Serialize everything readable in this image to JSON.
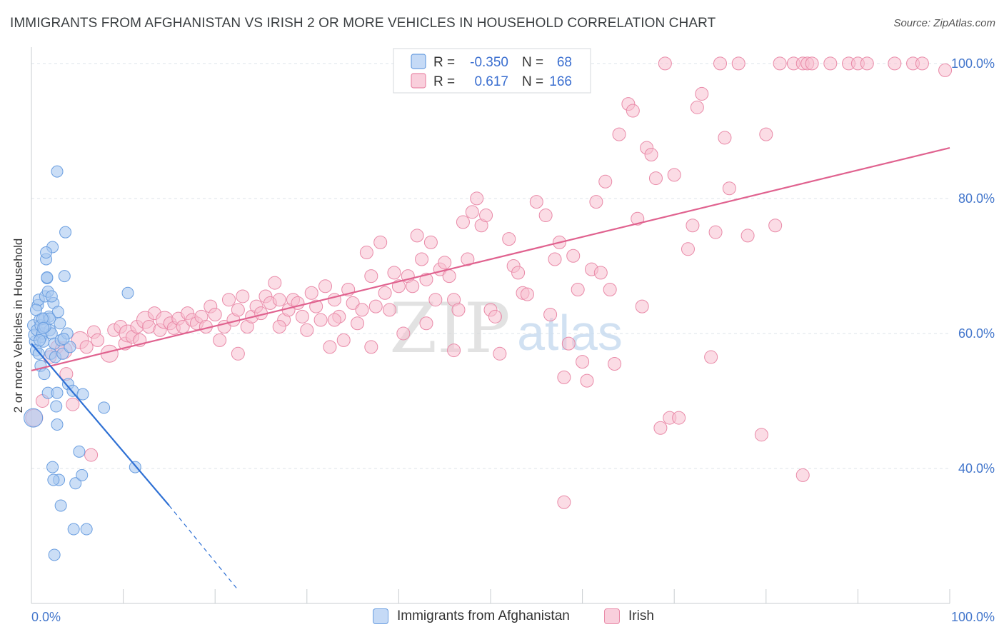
{
  "title": "IMMIGRANTS FROM AFGHANISTAN VS IRISH 2 OR MORE VEHICLES IN HOUSEHOLD CORRELATION CHART",
  "source": "Source: ZipAtlas.com",
  "watermark": {
    "zip": "ZIP",
    "atlas": "atlas"
  },
  "colors": {
    "blue_fill": "#a8c8f0",
    "blue_stroke": "#6a9ee0",
    "blue_line": "#2e70d4",
    "pink_fill": "#f7bfd0",
    "pink_stroke": "#e98aa8",
    "pink_line": "#e0628f",
    "tick_label": "#4477cc",
    "grid": "#dde3ea"
  },
  "legend": {
    "rows": [
      {
        "r_label": "R =",
        "r_value": "-0.350",
        "n_label": "N =",
        "n_value": "68"
      },
      {
        "r_label": "R =",
        "r_value": "0.617",
        "n_label": "N =",
        "n_value": "166"
      }
    ]
  },
  "chart_data": {
    "type": "scatter",
    "title": "IMMIGRANTS FROM AFGHANISTAN VS IRISH 2 OR MORE VEHICLES IN HOUSEHOLD CORRELATION CHART",
    "xlabel": "",
    "ylabel": "2 or more Vehicles in Household",
    "xlim": [
      0,
      100
    ],
    "ylim": [
      20,
      102
    ],
    "x_tick_labels": [
      "0.0%",
      "100.0%"
    ],
    "y_ticks": [
      40,
      60,
      80,
      100
    ],
    "y_tick_labels": [
      "40.0%",
      "60.0%",
      "80.0%",
      "100.0%"
    ],
    "grid": true,
    "legend_position": "top-center",
    "series": [
      {
        "name": "Immigrants from Afghanistan",
        "color": "blue",
        "R": -0.35,
        "N": 68,
        "points": [
          [
            0.2,
            61.2
          ],
          [
            0.4,
            58.8
          ],
          [
            0.5,
            57.5
          ],
          [
            0.3,
            59.8
          ],
          [
            0.6,
            60.5
          ],
          [
            0.2,
            47.5
          ],
          [
            0.7,
            64.2
          ],
          [
            0.8,
            65.0
          ],
          [
            0.9,
            62.0
          ],
          [
            1.0,
            61.2
          ],
          [
            1.1,
            59.5
          ],
          [
            1.2,
            60.0
          ],
          [
            1.3,
            58.8
          ],
          [
            1.4,
            62.2
          ],
          [
            1.5,
            65.5
          ],
          [
            1.6,
            71.0
          ],
          [
            1.7,
            68.2
          ],
          [
            1.8,
            66.2
          ],
          [
            1.9,
            62.5
          ],
          [
            2.0,
            60.5
          ],
          [
            1.0,
            55.2
          ],
          [
            1.4,
            54.0
          ],
          [
            2.1,
            57.0
          ],
          [
            2.2,
            60.0
          ],
          [
            2.3,
            72.8
          ],
          [
            2.4,
            64.5
          ],
          [
            2.5,
            58.5
          ],
          [
            2.6,
            56.5
          ],
          [
            2.8,
            84.0
          ],
          [
            2.9,
            63.2
          ],
          [
            3.1,
            61.5
          ],
          [
            3.2,
            59.0
          ],
          [
            3.4,
            57.0
          ],
          [
            3.6,
            68.5
          ],
          [
            3.7,
            75.0
          ],
          [
            3.9,
            60.0
          ],
          [
            4.0,
            52.5
          ],
          [
            4.2,
            58.0
          ],
          [
            4.5,
            51.5
          ],
          [
            4.8,
            37.8
          ],
          [
            5.2,
            42.5
          ],
          [
            5.5,
            39.0
          ],
          [
            5.6,
            51.0
          ],
          [
            6.0,
            31.0
          ],
          [
            4.6,
            31.0
          ],
          [
            2.5,
            27.2
          ],
          [
            3.2,
            34.5
          ],
          [
            3.0,
            38.3
          ],
          [
            2.4,
            38.3
          ],
          [
            2.3,
            40.2
          ],
          [
            2.8,
            46.5
          ],
          [
            2.7,
            49.2
          ],
          [
            1.8,
            51.2
          ],
          [
            2.8,
            51.2
          ],
          [
            7.9,
            49.0
          ],
          [
            10.5,
            66.0
          ],
          [
            11.3,
            40.2
          ],
          [
            1.5,
            61.0
          ],
          [
            0.9,
            59.0
          ],
          [
            1.7,
            68.3
          ],
          [
            2.0,
            62.2
          ],
          [
            1.2,
            62.2
          ],
          [
            1.6,
            72.0
          ],
          [
            2.2,
            65.5
          ],
          [
            1.3,
            60.8
          ],
          [
            0.8,
            57.0
          ],
          [
            3.5,
            59.2
          ],
          [
            0.5,
            63.5
          ]
        ]
      },
      {
        "name": "Irish",
        "color": "pink",
        "R": 0.617,
        "N": 166,
        "points": [
          [
            0.3,
            47.5
          ],
          [
            1.2,
            50.0
          ],
          [
            2.0,
            56.5
          ],
          [
            2.8,
            58.0
          ],
          [
            3.5,
            57.5
          ],
          [
            3.8,
            54.0
          ],
          [
            4.5,
            49.5
          ],
          [
            6.5,
            42.0
          ],
          [
            5.3,
            59.0
          ],
          [
            6.0,
            58.0
          ],
          [
            6.8,
            60.2
          ],
          [
            7.2,
            59.0
          ],
          [
            8.5,
            57.0
          ],
          [
            9.0,
            60.5
          ],
          [
            9.7,
            61.0
          ],
          [
            10.2,
            58.5
          ],
          [
            10.5,
            60.0
          ],
          [
            11.0,
            59.5
          ],
          [
            11.5,
            61.0
          ],
          [
            11.8,
            59.0
          ],
          [
            12.4,
            62.0
          ],
          [
            12.8,
            61.0
          ],
          [
            13.4,
            63.0
          ],
          [
            14.0,
            60.5
          ],
          [
            14.5,
            62.0
          ],
          [
            15.1,
            61.5
          ],
          [
            15.5,
            60.8
          ],
          [
            16.0,
            62.2
          ],
          [
            16.5,
            61.0
          ],
          [
            17.0,
            63.0
          ],
          [
            17.5,
            62.0
          ],
          [
            18.0,
            61.5
          ],
          [
            18.5,
            62.5
          ],
          [
            19.0,
            61.0
          ],
          [
            19.5,
            64.0
          ],
          [
            20.0,
            62.8
          ],
          [
            20.5,
            59.0
          ],
          [
            21.0,
            61.0
          ],
          [
            21.5,
            65.0
          ],
          [
            22.0,
            62.0
          ],
          [
            22.5,
            63.5
          ],
          [
            23.0,
            65.5
          ],
          [
            23.5,
            61.0
          ],
          [
            24.0,
            62.5
          ],
          [
            24.5,
            64.0
          ],
          [
            25.0,
            63.0
          ],
          [
            25.5,
            65.5
          ],
          [
            26.0,
            64.5
          ],
          [
            26.5,
            67.5
          ],
          [
            27.0,
            65.0
          ],
          [
            27.5,
            62.0
          ],
          [
            28.0,
            63.5
          ],
          [
            28.5,
            65.0
          ],
          [
            29.0,
            64.5
          ],
          [
            29.5,
            62.5
          ],
          [
            30.0,
            60.5
          ],
          [
            30.5,
            66.0
          ],
          [
            31.0,
            64.0
          ],
          [
            31.5,
            62.0
          ],
          [
            32.0,
            67.0
          ],
          [
            32.5,
            58.0
          ],
          [
            33.0,
            65.0
          ],
          [
            33.5,
            62.5
          ],
          [
            34.0,
            59.0
          ],
          [
            34.5,
            66.5
          ],
          [
            35.0,
            64.5
          ],
          [
            35.5,
            61.5
          ],
          [
            36.0,
            63.5
          ],
          [
            36.5,
            72.0
          ],
          [
            37.0,
            68.5
          ],
          [
            37.5,
            64.0
          ],
          [
            38.0,
            73.5
          ],
          [
            38.5,
            66.0
          ],
          [
            39.0,
            63.5
          ],
          [
            39.5,
            69.0
          ],
          [
            40.0,
            67.0
          ],
          [
            40.5,
            60.0
          ],
          [
            41.0,
            68.5
          ],
          [
            41.5,
            67.0
          ],
          [
            42.0,
            74.5
          ],
          [
            42.5,
            71.0
          ],
          [
            43.0,
            68.0
          ],
          [
            43.5,
            73.5
          ],
          [
            44.0,
            65.0
          ],
          [
            44.5,
            69.5
          ],
          [
            45.0,
            70.5
          ],
          [
            45.5,
            68.5
          ],
          [
            46.0,
            65.0
          ],
          [
            46.5,
            63.5
          ],
          [
            47.0,
            76.5
          ],
          [
            47.5,
            71.0
          ],
          [
            48.0,
            78.0
          ],
          [
            48.5,
            80.0
          ],
          [
            49.0,
            76.0
          ],
          [
            49.5,
            77.5
          ],
          [
            50.0,
            63.5
          ],
          [
            50.5,
            62.5
          ],
          [
            51.0,
            57.0
          ],
          [
            52.0,
            74.0
          ],
          [
            52.5,
            70.0
          ],
          [
            53.0,
            69.0
          ],
          [
            53.5,
            66.0
          ],
          [
            54.0,
            65.8
          ],
          [
            55.0,
            79.5
          ],
          [
            56.0,
            77.5
          ],
          [
            56.5,
            62.8
          ],
          [
            57.0,
            71.0
          ],
          [
            57.5,
            73.5
          ],
          [
            58.0,
            53.5
          ],
          [
            58.5,
            58.5
          ],
          [
            59.0,
            71.5
          ],
          [
            59.5,
            66.5
          ],
          [
            60.0,
            55.8
          ],
          [
            60.5,
            53.0
          ],
          [
            61.0,
            69.5
          ],
          [
            61.5,
            79.5
          ],
          [
            62.0,
            69.0
          ],
          [
            62.5,
            82.5
          ],
          [
            63.0,
            66.5
          ],
          [
            63.5,
            55.5
          ],
          [
            64.0,
            89.5
          ],
          [
            65.0,
            94.0
          ],
          [
            65.5,
            93.0
          ],
          [
            66.0,
            77.0
          ],
          [
            66.5,
            64.0
          ],
          [
            67.0,
            87.5
          ],
          [
            67.5,
            86.5
          ],
          [
            68.0,
            83.0
          ],
          [
            68.5,
            46.0
          ],
          [
            69.0,
            100.0
          ],
          [
            69.5,
            47.5
          ],
          [
            70.0,
            83.5
          ],
          [
            70.5,
            47.5
          ],
          [
            71.5,
            72.5
          ],
          [
            72.0,
            76.0
          ],
          [
            72.5,
            93.5
          ],
          [
            73.0,
            95.5
          ],
          [
            74.0,
            56.5
          ],
          [
            74.5,
            75.0
          ],
          [
            75.0,
            100.0
          ],
          [
            75.5,
            89.0
          ],
          [
            76.0,
            81.5
          ],
          [
            77.0,
            100.0
          ],
          [
            78.0,
            74.5
          ],
          [
            79.5,
            45.0
          ],
          [
            80.0,
            89.5
          ],
          [
            81.0,
            76.0
          ],
          [
            81.5,
            100.0
          ],
          [
            83.0,
            100.0
          ],
          [
            84.0,
            100.0
          ],
          [
            84.5,
            100.0
          ],
          [
            85.0,
            100.0
          ],
          [
            87.0,
            100.0
          ],
          [
            89.0,
            100.0
          ],
          [
            90.0,
            100.0
          ],
          [
            91.0,
            100.0
          ],
          [
            94.0,
            100.0
          ],
          [
            96.0,
            100.0
          ],
          [
            97.0,
            100.0
          ],
          [
            99.5,
            99.0
          ],
          [
            84.0,
            39.0
          ],
          [
            58.0,
            35.0
          ],
          [
            43.0,
            61.5
          ],
          [
            37.0,
            58.0
          ],
          [
            27.0,
            61.0
          ],
          [
            33.0,
            62.0
          ],
          [
            22.5,
            57.0
          ],
          [
            46.0,
            57.5
          ]
        ]
      }
    ],
    "trend_lines": [
      {
        "series": "Immigrants from Afghanistan",
        "solid_from": [
          0,
          58.5
        ],
        "solid_to": [
          15,
          34.5
        ],
        "dashed_to": [
          22.5,
          22.0
        ]
      },
      {
        "series": "Irish",
        "from": [
          0,
          54.5
        ],
        "to": [
          100,
          87.5
        ]
      }
    ]
  }
}
